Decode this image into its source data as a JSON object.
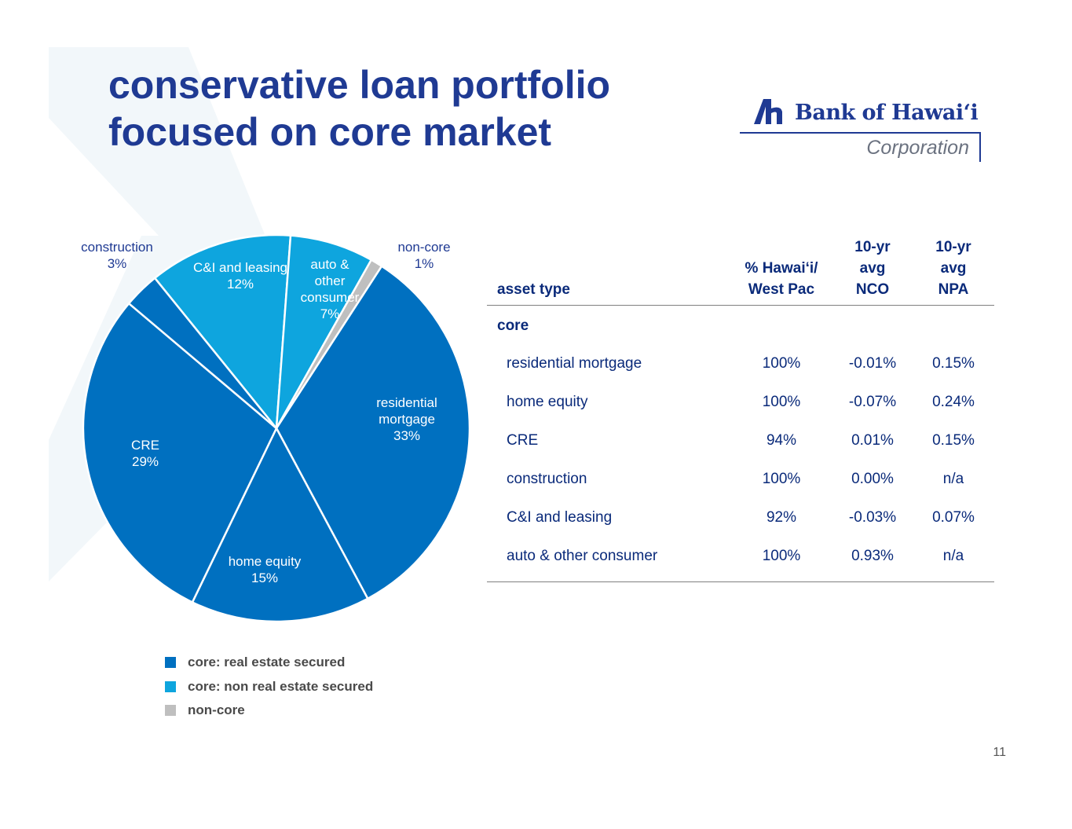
{
  "slide": {
    "title_line1": "conservative loan portfolio",
    "title_line2": "focused on core market",
    "page_number": "11"
  },
  "logo": {
    "name": "Bank of Hawai‘i",
    "subtitle": "Corporation"
  },
  "colors": {
    "title": "#1f3a93",
    "core_real_estate": "#0070c0",
    "core_non_real_estate": "#0ea5de",
    "non_core": "#bfbfbf"
  },
  "chart_data": {
    "type": "pie",
    "start_angle_deg": 33,
    "direction": "clockwise",
    "slices": [
      {
        "label": "residential mortgage",
        "value": 33,
        "display": "33%",
        "group": "core_real_estate",
        "label_outside": false
      },
      {
        "label": "home equity",
        "value": 15,
        "display": "15%",
        "group": "core_real_estate",
        "label_outside": false
      },
      {
        "label": "CRE",
        "value": 29,
        "display": "29%",
        "group": "core_real_estate",
        "label_outside": false
      },
      {
        "label": "construction",
        "value": 3,
        "display": "3%",
        "group": "core_real_estate",
        "label_outside": true
      },
      {
        "label": "C&I and leasing",
        "value": 12,
        "display": "12%",
        "group": "core_non_real_estate",
        "label_outside": false
      },
      {
        "label": "auto & other consumer",
        "value": 7,
        "display": "7%",
        "group": "core_non_real_estate",
        "label_outside": false
      },
      {
        "label": "non-core",
        "value": 1,
        "display": "1%",
        "group": "non_core",
        "label_outside": true
      }
    ],
    "legend": [
      {
        "label": "core:  real estate secured",
        "color": "#0070c0"
      },
      {
        "label": "core:  non real estate secured",
        "color": "#0ea5de"
      },
      {
        "label": "non-core",
        "color": "#bfbfbf"
      }
    ],
    "legend_position": "bottom-left"
  },
  "table": {
    "headers": {
      "asset_type": "asset type",
      "pct_line1": "% Hawai‘i/",
      "pct_line2": "West Pac",
      "nco_line1": "10-yr",
      "nco_line2": "avg",
      "nco_line3": "NCO",
      "npa_line1": "10-yr",
      "npa_line2": "avg",
      "npa_line3": "NPA"
    },
    "group_label": "core",
    "rows": [
      {
        "asset": "residential mortgage",
        "pct": "100%",
        "nco": "-0.01%",
        "npa": "0.15%"
      },
      {
        "asset": "home equity",
        "pct": "100%",
        "nco": "-0.07%",
        "npa": "0.24%"
      },
      {
        "asset": "CRE",
        "pct": "94%",
        "nco": "0.01%",
        "npa": "0.15%"
      },
      {
        "asset": "construction",
        "pct": "100%",
        "nco": "0.00%",
        "npa": "n/a"
      },
      {
        "asset": "C&I and leasing",
        "pct": "92%",
        "nco": "-0.03%",
        "npa": "0.07%"
      },
      {
        "asset": "auto & other consumer",
        "pct": "100%",
        "nco": "0.93%",
        "npa": "n/a"
      }
    ]
  }
}
